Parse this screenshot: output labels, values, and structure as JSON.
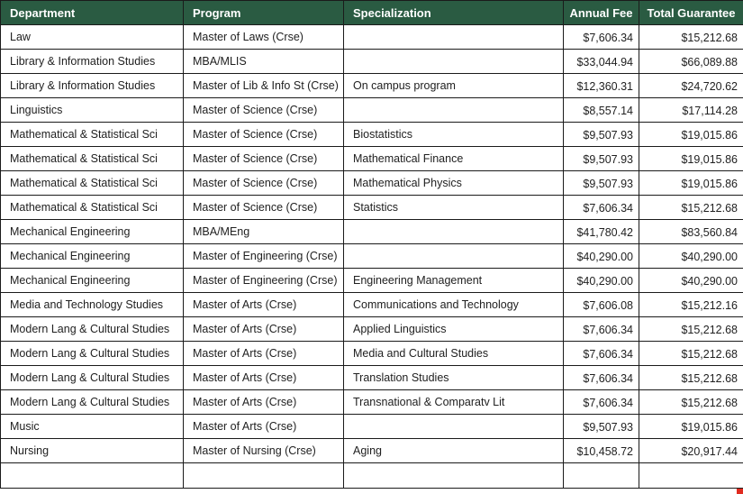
{
  "colors": {
    "header_bg": "#2a5b42",
    "header_text": "#ffffff",
    "grid_border": "#1b1b1b",
    "body_text": "#212121",
    "row_bg": "#ffffff",
    "corner_marker": "#e02b20"
  },
  "table": {
    "columns": [
      "Department",
      "Program",
      "Specialization",
      "Annual Fee",
      "Total Guarantee"
    ],
    "rows": [
      {
        "department": "Law",
        "program": "Master of Laws (Crse)",
        "specialization": "",
        "annual_fee": "$7,606.34",
        "total_guarantee": "$15,212.68"
      },
      {
        "department": "Library & Information Studies",
        "program": "MBA/MLIS",
        "specialization": "",
        "annual_fee": "$33,044.94",
        "total_guarantee": "$66,089.88"
      },
      {
        "department": "Library & Information Studies",
        "program": "Master of Lib & Info St (Crse)",
        "specialization": "On campus program",
        "annual_fee": "$12,360.31",
        "total_guarantee": "$24,720.62"
      },
      {
        "department": "Linguistics",
        "program": "Master of Science (Crse)",
        "specialization": "",
        "annual_fee": "$8,557.14",
        "total_guarantee": "$17,114.28"
      },
      {
        "department": "Mathematical & Statistical Sci",
        "program": "Master of Science (Crse)",
        "specialization": "Biostatistics",
        "annual_fee": "$9,507.93",
        "total_guarantee": "$19,015.86"
      },
      {
        "department": "Mathematical & Statistical Sci",
        "program": "Master of Science (Crse)",
        "specialization": "Mathematical Finance",
        "annual_fee": "$9,507.93",
        "total_guarantee": "$19,015.86"
      },
      {
        "department": "Mathematical & Statistical Sci",
        "program": "Master of Science (Crse)",
        "specialization": "Mathematical Physics",
        "annual_fee": "$9,507.93",
        "total_guarantee": "$19,015.86"
      },
      {
        "department": "Mathematical & Statistical Sci",
        "program": "Master of Science (Crse)",
        "specialization": "Statistics",
        "annual_fee": "$7,606.34",
        "total_guarantee": "$15,212.68"
      },
      {
        "department": "Mechanical Engineering",
        "program": "MBA/MEng",
        "specialization": "",
        "annual_fee": "$41,780.42",
        "total_guarantee": "$83,560.84"
      },
      {
        "department": "Mechanical Engineering",
        "program": "Master of Engineering (Crse)",
        "specialization": "",
        "annual_fee": "$40,290.00",
        "total_guarantee": "$40,290.00"
      },
      {
        "department": "Mechanical Engineering",
        "program": "Master of Engineering (Crse)",
        "specialization": "Engineering Management",
        "annual_fee": "$40,290.00",
        "total_guarantee": "$40,290.00"
      },
      {
        "department": "Media and Technology Studies",
        "program": "Master of Arts (Crse)",
        "specialization": "Communications and Technology",
        "annual_fee": "$7,606.08",
        "total_guarantee": "$15,212.16"
      },
      {
        "department": "Modern Lang & Cultural Studies",
        "program": "Master of Arts (Crse)",
        "specialization": "Applied Linguistics",
        "annual_fee": "$7,606.34",
        "total_guarantee": "$15,212.68"
      },
      {
        "department": "Modern Lang & Cultural Studies",
        "program": "Master of Arts (Crse)",
        "specialization": "Media and Cultural Studies",
        "annual_fee": "$7,606.34",
        "total_guarantee": "$15,212.68"
      },
      {
        "department": "Modern Lang & Cultural Studies",
        "program": "Master of Arts (Crse)",
        "specialization": "Translation Studies",
        "annual_fee": "$7,606.34",
        "total_guarantee": "$15,212.68"
      },
      {
        "department": "Modern Lang & Cultural Studies",
        "program": "Master of Arts (Crse)",
        "specialization": "Transnational & Comparatv Lit",
        "annual_fee": "$7,606.34",
        "total_guarantee": "$15,212.68"
      },
      {
        "department": "Music",
        "program": "Master of Arts (Crse)",
        "specialization": "",
        "annual_fee": "$9,507.93",
        "total_guarantee": "$19,015.86"
      },
      {
        "department": "Nursing",
        "program": "Master of Nursing (Crse)",
        "specialization": "Aging",
        "annual_fee": "$10,458.72",
        "total_guarantee": "$20,917.44"
      }
    ]
  }
}
